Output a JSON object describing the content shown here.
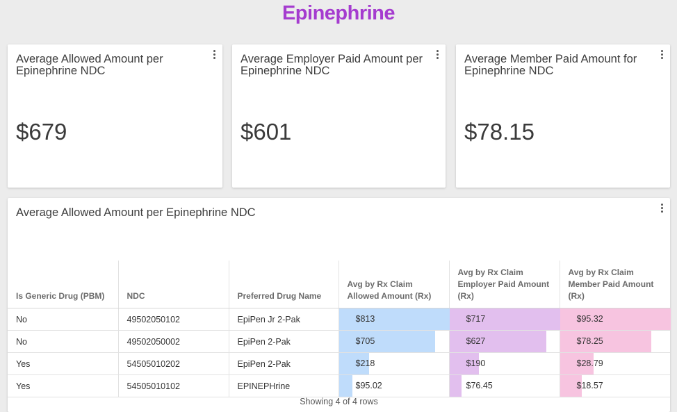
{
  "page": {
    "title": "Epinephrine"
  },
  "colors": {
    "title": "#a53ccf",
    "allowed_bar": "#bfdcfb",
    "employer_bar": "#e2bfee",
    "member_bar": "#f7c4e0"
  },
  "kpis": [
    {
      "title": "Average Allowed Amount per Epinephrine NDC",
      "value": "$679"
    },
    {
      "title": "Average Employer Paid Amount per Epinephrine NDC",
      "value": "$601"
    },
    {
      "title": "Average Member Paid Amount for Epinephrine NDC",
      "value": "$78.15"
    }
  ],
  "table_card": {
    "title": "Average Allowed Amount per Epinephrine NDC",
    "footer": "Showing 4 of 4 rows",
    "columns": [
      "Is Generic Drug (PBM)",
      "NDC",
      "Preferred Drug Name",
      "Avg by Rx Claim Allowed Amount (Rx)",
      "Avg by Rx Claim Employer Paid Amount (Rx)",
      "Avg by Rx Claim Member Paid Amount (Rx)"
    ],
    "rows": [
      {
        "generic": "No",
        "ndc": "49502050102",
        "drug": "EpiPen Jr 2-Pak",
        "allowed": "$813",
        "employer": "$717",
        "member": "$95.32",
        "allowed_num": 813,
        "employer_num": 717,
        "member_num": 95.32
      },
      {
        "generic": "No",
        "ndc": "49502050002",
        "drug": "EpiPen 2-Pak",
        "allowed": "$705",
        "employer": "$627",
        "member": "$78.25",
        "allowed_num": 705,
        "employer_num": 627,
        "member_num": 78.25
      },
      {
        "generic": "Yes",
        "ndc": "54505010202",
        "drug": "EpiPen 2-Pak",
        "allowed": "$218",
        "employer": "$190",
        "member": "$28.79",
        "allowed_num": 218,
        "employer_num": 190,
        "member_num": 28.79
      },
      {
        "generic": "Yes",
        "ndc": "54505010102",
        "drug": "EPINEPHrine",
        "allowed": "$95.02",
        "employer": "$76.45",
        "member": "$18.57",
        "allowed_num": 95.02,
        "employer_num": 76.45,
        "member_num": 18.57
      }
    ]
  }
}
